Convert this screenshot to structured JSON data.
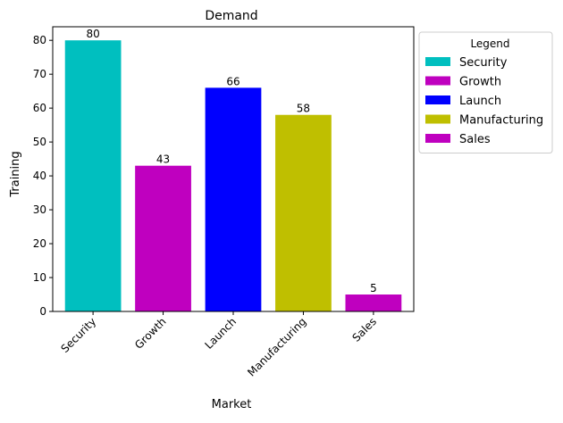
{
  "chart_data": {
    "type": "bar",
    "title": "Demand",
    "xlabel": "Market",
    "ylabel": "Training",
    "categories": [
      "Security",
      "Growth",
      "Launch",
      "Manufacturing",
      "Sales"
    ],
    "values": [
      80,
      43,
      66,
      58,
      5
    ],
    "colors": [
      "#00bfbf",
      "#bf00bf",
      "#0000ff",
      "#bfbf00",
      "#bf00bf"
    ],
    "ylim": [
      0,
      84
    ],
    "yticks": [
      0,
      10,
      20,
      30,
      40,
      50,
      60,
      70,
      80
    ],
    "grid": false,
    "data_labels": true,
    "legend": {
      "title": "Legend",
      "placement": "outside-right-top",
      "entries": [
        "Security",
        "Growth",
        "Launch",
        "Manufacturing",
        "Sales"
      ]
    }
  }
}
